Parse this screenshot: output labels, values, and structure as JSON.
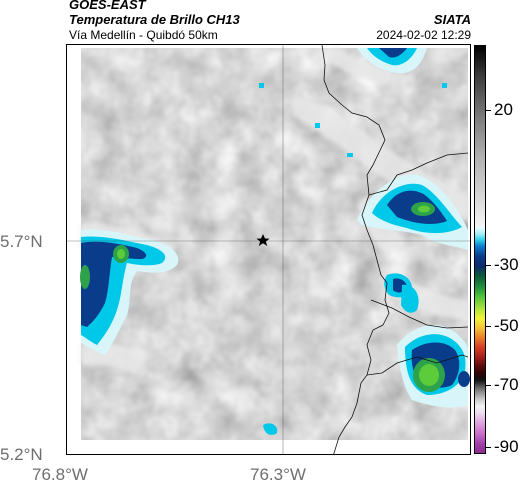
{
  "header": {
    "satellite": "GOES-EAST",
    "product": "Temperatura de Brillo CH13",
    "organization": "SIATA",
    "region": "Vía Medellín - Quibdó 50km",
    "datetime": "2024-02-02 12:29"
  },
  "map": {
    "lat_labels": [
      "5.7°N",
      "5.2°N"
    ],
    "lon_labels": [
      "76.8°W",
      "76.3°W"
    ],
    "marker": "star-marker"
  },
  "colorbar": {
    "labels": [
      "20",
      "-30",
      "-50",
      "-70",
      "-90"
    ]
  }
}
